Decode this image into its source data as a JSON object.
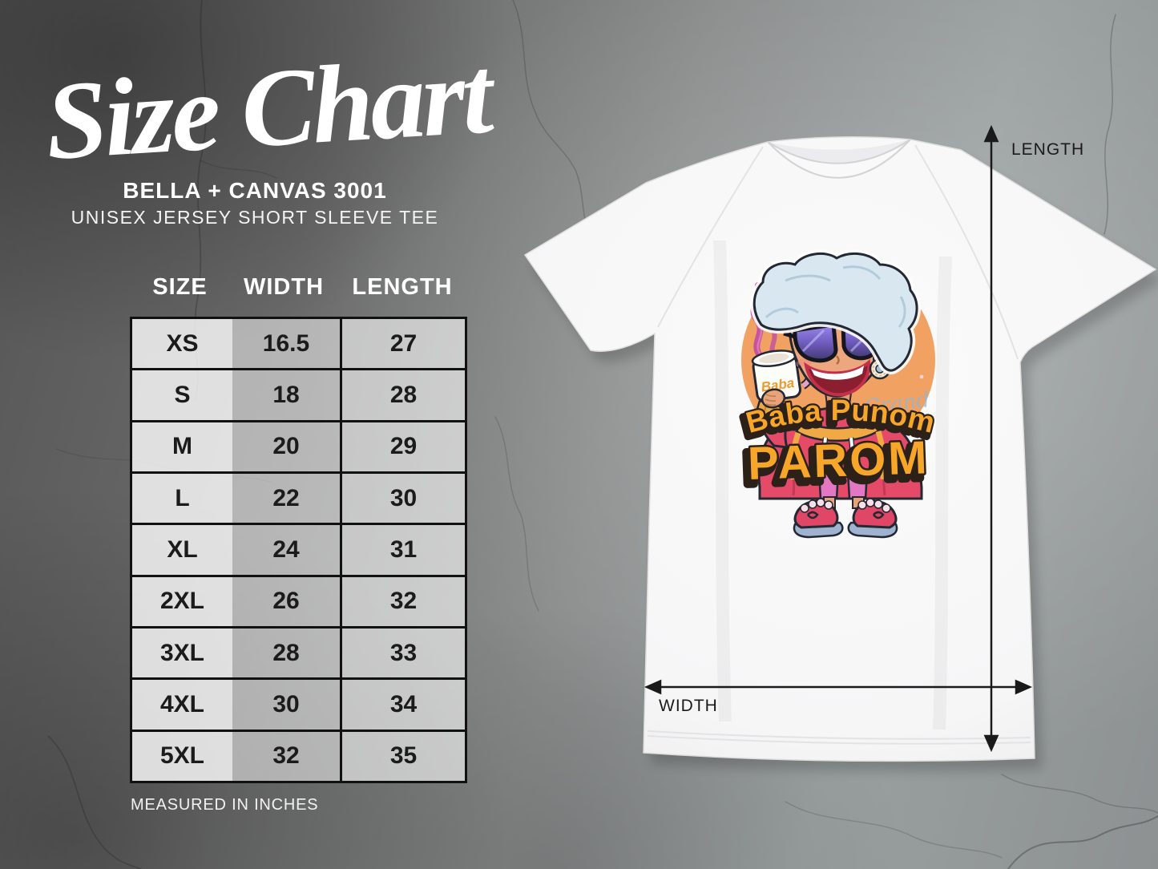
{
  "page": {
    "heading_script": "Size Chart",
    "brand_line": "BELLA + CANVAS 3001",
    "product_line": "UNISEX JERSEY SHORT SLEEVE TEE"
  },
  "size_table": {
    "columns": [
      "SIZE",
      "WIDTH",
      "LENGTH"
    ],
    "rows": [
      [
        "XS",
        "16.5",
        "27"
      ],
      [
        "S",
        "18",
        "28"
      ],
      [
        "M",
        "20",
        "29"
      ],
      [
        "L",
        "22",
        "30"
      ],
      [
        "XL",
        "24",
        "31"
      ],
      [
        "2XL",
        "26",
        "32"
      ],
      [
        "3XL",
        "28",
        "33"
      ],
      [
        "4XL",
        "30",
        "34"
      ],
      [
        "5XL",
        "32",
        "35"
      ]
    ],
    "footnote": "MEASURED IN INCHES"
  },
  "measurements": {
    "length_label": "LENGTH",
    "width_label": "WIDTH"
  },
  "shirt_design": {
    "line1": "Baba Punom",
    "line2": "PAROM",
    "mug_text": "Baba",
    "background_word": "Grand"
  },
  "colors": {
    "design_yellow": "#f7a62a",
    "accent_orange": "#f1a262",
    "hoodie_pink": "#e64a69",
    "steam_magenta": "#c4549c",
    "hair_silver": "#d9e8f0",
    "shirt_white": "#f7f7f7",
    "background_gray": "#8b8d8d",
    "table_text": "#1b1b1b",
    "arrow_black": "#1a1a1a"
  }
}
